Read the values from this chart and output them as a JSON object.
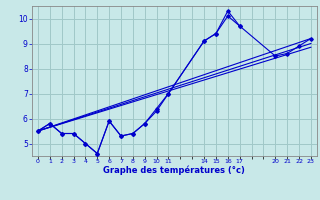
{
  "title": "Graphe des températures (°c)",
  "bg_color": "#c8e8e8",
  "grid_color": "#a0c8c8",
  "line_color": "#0000cc",
  "xlim": [
    -0.5,
    23.5
  ],
  "ylim": [
    4.5,
    10.5
  ],
  "yticks": [
    5,
    6,
    7,
    8,
    9,
    10
  ],
  "series": [
    {
      "x": [
        0,
        1,
        2,
        3,
        4,
        5,
        6,
        7,
        8,
        9,
        10,
        11,
        14,
        15,
        16,
        17
      ],
      "y": [
        5.5,
        5.8,
        5.4,
        5.4,
        5.0,
        4.6,
        5.9,
        5.3,
        5.4,
        5.8,
        6.3,
        7.0,
        9.1,
        9.4,
        10.3,
        9.7
      ]
    },
    {
      "x": [
        0,
        1,
        2,
        3,
        4,
        5,
        6,
        7,
        8,
        9,
        10,
        11,
        14,
        15,
        16,
        17,
        20,
        21,
        22,
        23
      ],
      "y": [
        5.5,
        5.8,
        5.4,
        5.4,
        5.0,
        4.6,
        5.9,
        5.3,
        5.4,
        5.8,
        6.4,
        7.0,
        9.1,
        9.4,
        10.1,
        9.7,
        8.5,
        8.6,
        8.9,
        9.2
      ]
    },
    {
      "x": [
        0,
        23
      ],
      "y": [
        5.5,
        9.2
      ]
    },
    {
      "x": [
        0,
        23
      ],
      "y": [
        5.5,
        9.0
      ]
    },
    {
      "x": [
        0,
        23
      ],
      "y": [
        5.5,
        8.85
      ]
    }
  ]
}
